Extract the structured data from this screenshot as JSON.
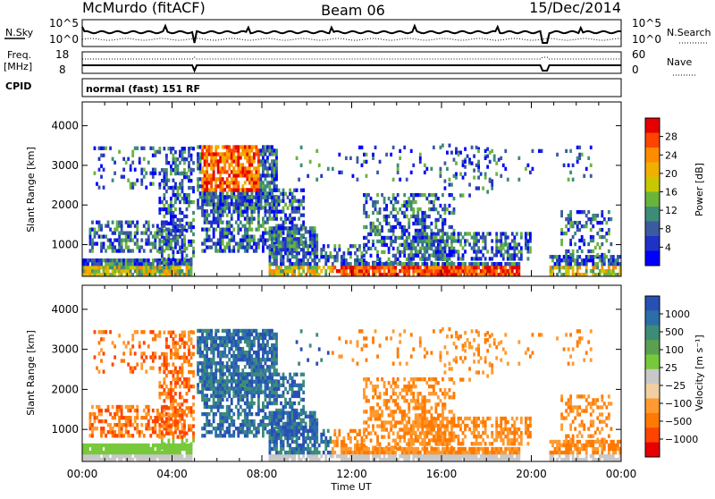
{
  "header": {
    "station": "McMurdo (fitACF)",
    "beam": "Beam 06",
    "date": "15/Dec/2014"
  },
  "strip": {
    "nsky_label": "N.Sky",
    "nsky_ticks": [
      "10^5",
      "10^0"
    ],
    "nsearch_label": "N.Search",
    "nsearch_ticks": [
      "10^5",
      "10^0"
    ],
    "freq_label_1": "Freq.",
    "freq_label_2": "[MHz]",
    "freq_ticks": [
      "18",
      "8"
    ],
    "nave_label": "Nave",
    "nave_ticks": [
      "60",
      "0"
    ],
    "cpid_label": "CPID",
    "cpid_value": "normal (fast) 151 RF"
  },
  "chart_data": [
    {
      "type": "heatmap",
      "name": "power-panel",
      "ylabel": "Slant Range [km]",
      "xlabel": "",
      "y_ticks": [
        1000,
        2000,
        3000,
        4000
      ],
      "y_range": [
        200,
        4600
      ],
      "x_range_hours": [
        0,
        24
      ],
      "colorbar_label": "Power [dB]",
      "colorbar_ticks": [
        "28",
        "24",
        "20",
        "16",
        "12",
        "8",
        "4"
      ],
      "colorbar_colors": [
        "#e60000",
        "#ff4400",
        "#ff8c00",
        "#f0b000",
        "#c8c800",
        "#6ab43c",
        "#3c8c78",
        "#3c5aa0",
        "#1e32c8",
        "#0000ff"
      ]
    },
    {
      "type": "heatmap",
      "name": "velocity-panel",
      "ylabel": "Slant Range [km]",
      "xlabel": "Time UT",
      "x_ticks": [
        "00:00",
        "04:00",
        "08:00",
        "12:00",
        "16:00",
        "20:00",
        "00:00"
      ],
      "y_ticks": [
        1000,
        2000,
        3000,
        4000
      ],
      "y_range": [
        200,
        4600
      ],
      "x_range_hours": [
        0,
        24
      ],
      "colorbar_label": "Velocity [m s⁻¹]",
      "colorbar_ticks": [
        "1000",
        "500",
        "100",
        "25",
        "−25",
        "−100",
        "−500",
        "−1000"
      ],
      "colorbar_colors": [
        "#2850b4",
        "#2c6ea8",
        "#3c8c78",
        "#5aa050",
        "#78c83c",
        "#c8c8c8",
        "#f0d0a0",
        "#ff9a30",
        "#ff7a00",
        "#ff4400",
        "#e60000"
      ]
    }
  ],
  "colors": {
    "ground_scatter": "#b4b4b4"
  }
}
